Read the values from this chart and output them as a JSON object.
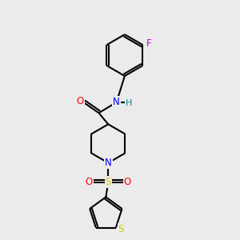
{
  "background_color": "#ebebeb",
  "bond_color": "#000000",
  "atom_colors": {
    "N": "#0000ff",
    "O": "#ff0000",
    "S_sulfonyl": "#cccc00",
    "S_thiophene": "#cccc00",
    "F": "#cc00cc",
    "H": "#008888",
    "C": "#000000"
  },
  "figsize": [
    3.0,
    3.0
  ],
  "dpi": 100
}
